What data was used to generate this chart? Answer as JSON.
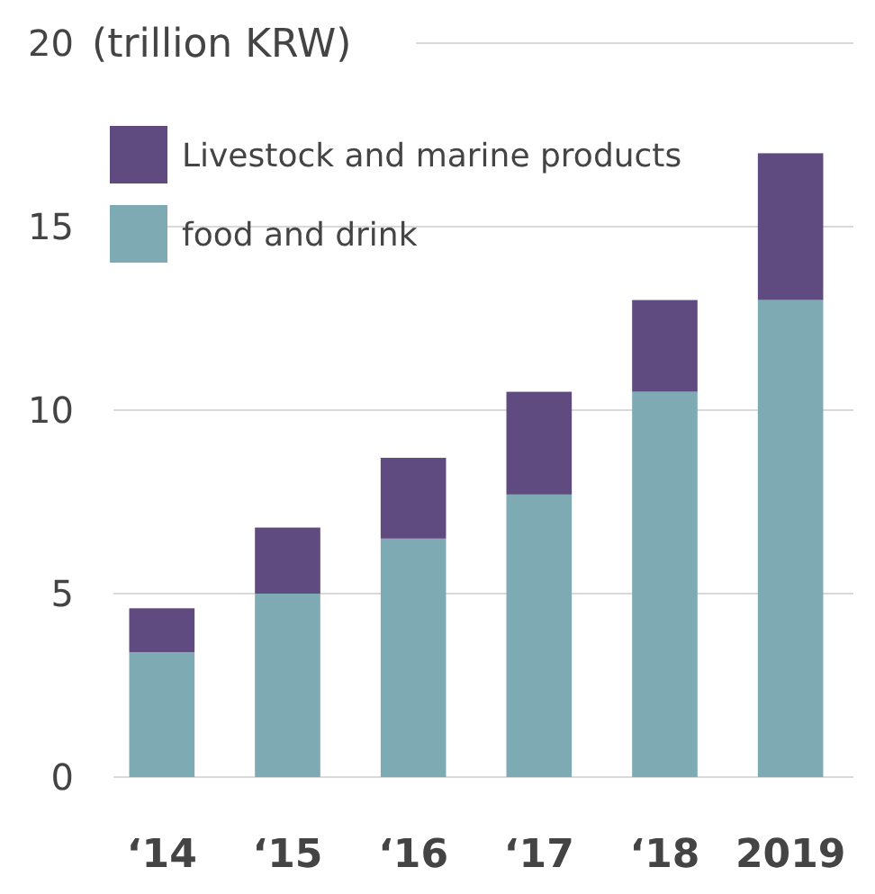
{
  "chart_data": {
    "type": "bar",
    "stacked": true,
    "ylabel": "(trillion KRW)",
    "categories": [
      "‘14",
      "‘15",
      "‘16",
      "‘17",
      "‘18",
      "2019"
    ],
    "series": [
      {
        "name": "food and drink",
        "color": "#7eaab4",
        "values": [
          3.4,
          5.0,
          6.5,
          7.7,
          10.5,
          13.0
        ]
      },
      {
        "name": "Livestock and marine products",
        "color": "#5f4b80",
        "values": [
          1.2,
          1.8,
          2.2,
          2.8,
          2.5,
          4.0
        ]
      }
    ],
    "ylim": [
      0,
      20
    ],
    "yticks": [
      0,
      5,
      10,
      15,
      20
    ],
    "grid": "y",
    "legend": "top left"
  }
}
